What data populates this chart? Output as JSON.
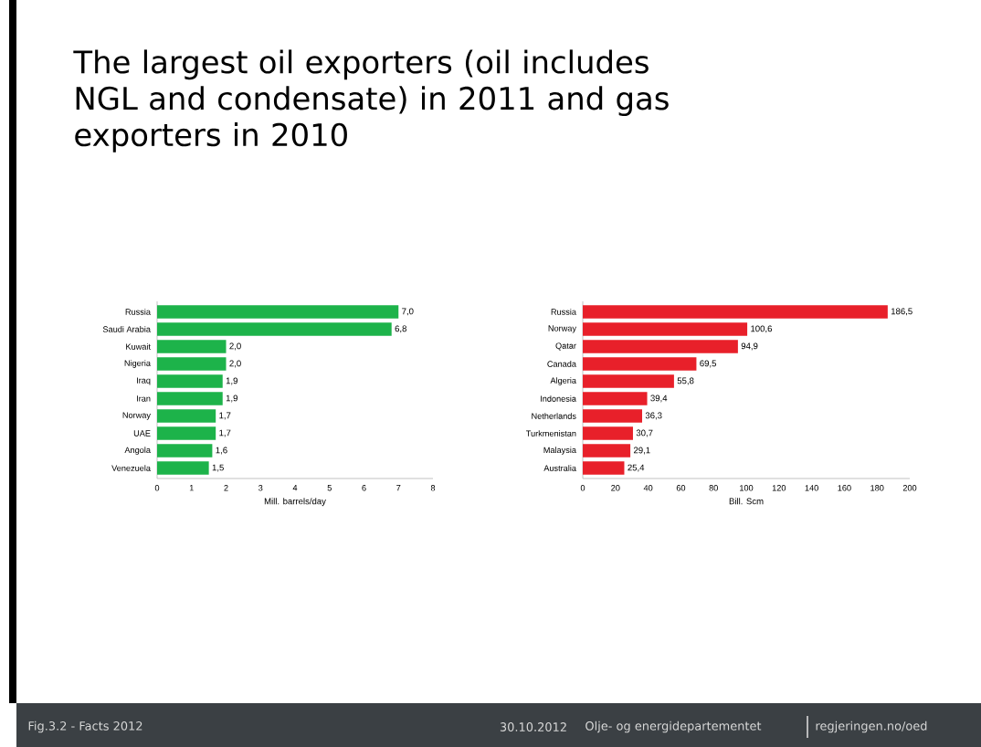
{
  "chart_data": [
    {
      "type": "bar",
      "orientation": "horizontal",
      "title": "The largest oil exporters (oil includes NGL and condensate) in 2011 and gas exporters in 2010",
      "xlabel": "Mill. barrels/day",
      "categories": [
        "Russia",
        "Saudi Arabia",
        "Kuwait",
        "Nigeria",
        "Iraq",
        "Iran",
        "Norway",
        "UAE",
        "Angola",
        "Venezuela"
      ],
      "values": [
        7.0,
        6.8,
        2.0,
        2.0,
        1.9,
        1.9,
        1.7,
        1.7,
        1.6,
        1.5
      ],
      "value_labels": [
        "7,0",
        "6,8",
        "2,0",
        "2,0",
        "1,9",
        "1,9",
        "1,7",
        "1,7",
        "1,6",
        "1,5"
      ],
      "color": "#1db34a",
      "xlim": [
        0,
        8
      ],
      "xticks": [
        0,
        1,
        2,
        3,
        4,
        5,
        6,
        7,
        8
      ],
      "grid": false
    },
    {
      "type": "bar",
      "orientation": "horizontal",
      "xlabel": "Bill. Scm",
      "categories": [
        "Russia",
        "Norway",
        "Qatar",
        "Canada",
        "Algeria",
        "Indonesia",
        "Netherlands",
        "Turkmenistan",
        "Malaysia",
        "Australia"
      ],
      "values": [
        186.5,
        100.6,
        94.9,
        69.5,
        55.8,
        39.4,
        36.3,
        30.7,
        29.1,
        25.4
      ],
      "value_labels": [
        "186,5",
        "100,6",
        "94,9",
        "69,5",
        "55,8",
        "39,4",
        "36,3",
        "30,7",
        "29,1",
        "25,4"
      ],
      "color": "#e8202a",
      "xlim": [
        0,
        200
      ],
      "xticks": [
        0,
        20,
        40,
        60,
        80,
        100,
        120,
        140,
        160,
        180,
        200
      ],
      "grid": false,
      "annotations": [
        "Fig.3.2 - Facts 2012",
        "30.10.2012",
        "Olje- og energidepartementet",
        "regjeringen.no/oed"
      ]
    }
  ]
}
